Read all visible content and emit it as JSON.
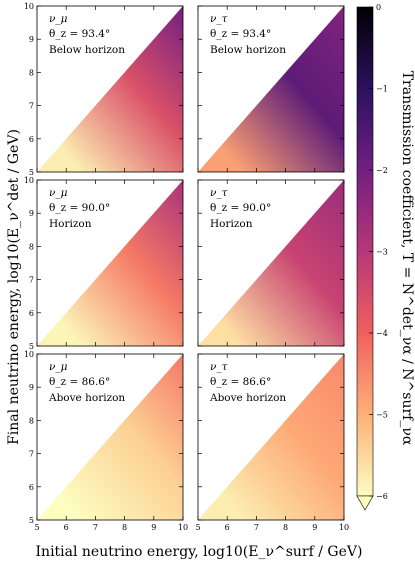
{
  "chart_data": {
    "type": "heatmap",
    "x_label": "Initial neutrino energy, log10(E_ν^surf / GeV)",
    "y_label": "Final neutrino energy, log10(E_ν^det / GeV)",
    "colorbar_label": "Transmission coefficient, T = N^det_να / N^surf_να",
    "colorbar_ticks": [
      "0",
      "−1",
      "−2",
      "−3",
      "−4",
      "−5",
      "−6"
    ],
    "colorbar_range": [
      -6,
      0
    ],
    "colormap": [
      "#fcfdbf",
      "#feb078",
      "#f1605d",
      "#b73779",
      "#721f81",
      "#2c115f",
      "#000004"
    ],
    "xlim": [
      5,
      10
    ],
    "ylim": [
      5,
      10
    ],
    "x_ticks": [
      "5",
      "6",
      "7",
      "8",
      "9",
      "10"
    ],
    "y_ticks": [
      "5",
      "6",
      "7",
      "8",
      "9",
      "10"
    ],
    "panels": [
      {
        "flavor": "ν_μ",
        "angle": "θ_z = 93.4°",
        "region": "Below horizon",
        "upper_log10_T": -2.0,
        "mid_log10_T": -3.6,
        "low_log10_T": -5.8
      },
      {
        "flavor": "ν_τ",
        "angle": "θ_z = 93.4°",
        "region": "Below horizon",
        "upper_log10_T": -2.2,
        "mid_log10_T": -1.7,
        "low_log10_T": -4.8
      },
      {
        "flavor": "ν_μ",
        "angle": "θ_z = 90.0°",
        "region": "Horizon",
        "upper_log10_T": -2.8,
        "mid_log10_T": -4.3,
        "low_log10_T": -5.9
      },
      {
        "flavor": "ν_τ",
        "angle": "θ_z = 90.0°",
        "region": "Horizon",
        "upper_log10_T": -2.6,
        "mid_log10_T": -3.3,
        "low_log10_T": -5.6
      },
      {
        "flavor": "ν_μ",
        "angle": "θ_z = 86.6°",
        "region": "Above horizon",
        "upper_log10_T": -4.3,
        "mid_log10_T": -5.4,
        "low_log10_T": -6.0
      },
      {
        "flavor": "ν_τ",
        "angle": "θ_z = 86.6°",
        "region": "Above horizon",
        "upper_log10_T": -4.5,
        "mid_log10_T": -4.9,
        "low_log10_T": -5.8
      }
    ]
  }
}
